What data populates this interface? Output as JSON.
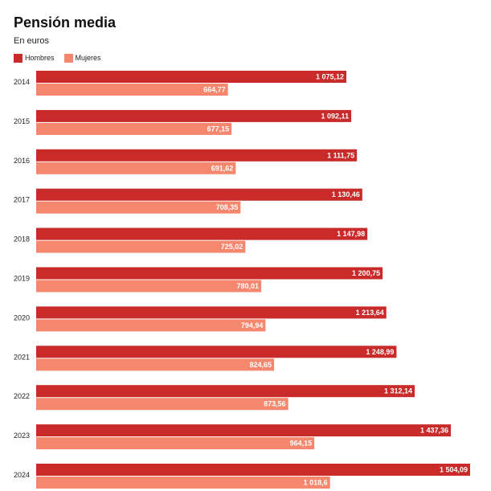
{
  "chart_data": {
    "type": "bar",
    "orientation": "horizontal",
    "title": "Pensión media",
    "subtitle": "En euros",
    "categories": [
      "2014",
      "2015",
      "2016",
      "2017",
      "2018",
      "2019",
      "2020",
      "2021",
      "2022",
      "2023",
      "2024"
    ],
    "series": [
      {
        "name": "Hombres",
        "color": "#c92a2a",
        "values": [
          1075.12,
          1092.11,
          1111.75,
          1130.46,
          1147.98,
          1200.75,
          1213.64,
          1248.99,
          1312.14,
          1437.36,
          1504.09
        ],
        "labels": [
          "1 075,12",
          "1 092,11",
          "1 111,75",
          "1 130,46",
          "1 147,98",
          "1 200,75",
          "1 213,64",
          "1 248,99",
          "1 312,14",
          "1 437,36",
          "1 504,09"
        ]
      },
      {
        "name": "Mujeres",
        "color": "#f4876e",
        "values": [
          664.77,
          677.15,
          691.62,
          708.35,
          725.02,
          780.01,
          794.94,
          824.65,
          873.56,
          964.15,
          1018.6
        ],
        "labels": [
          "664,77",
          "677,15",
          "691,62",
          "708,35",
          "725,02",
          "780,01",
          "794,94",
          "824,65",
          "873,56",
          "964,15",
          "1 018,6"
        ]
      }
    ],
    "xlim": [
      0,
      1504.09
    ],
    "grid": false,
    "legend_position": "top-left"
  }
}
